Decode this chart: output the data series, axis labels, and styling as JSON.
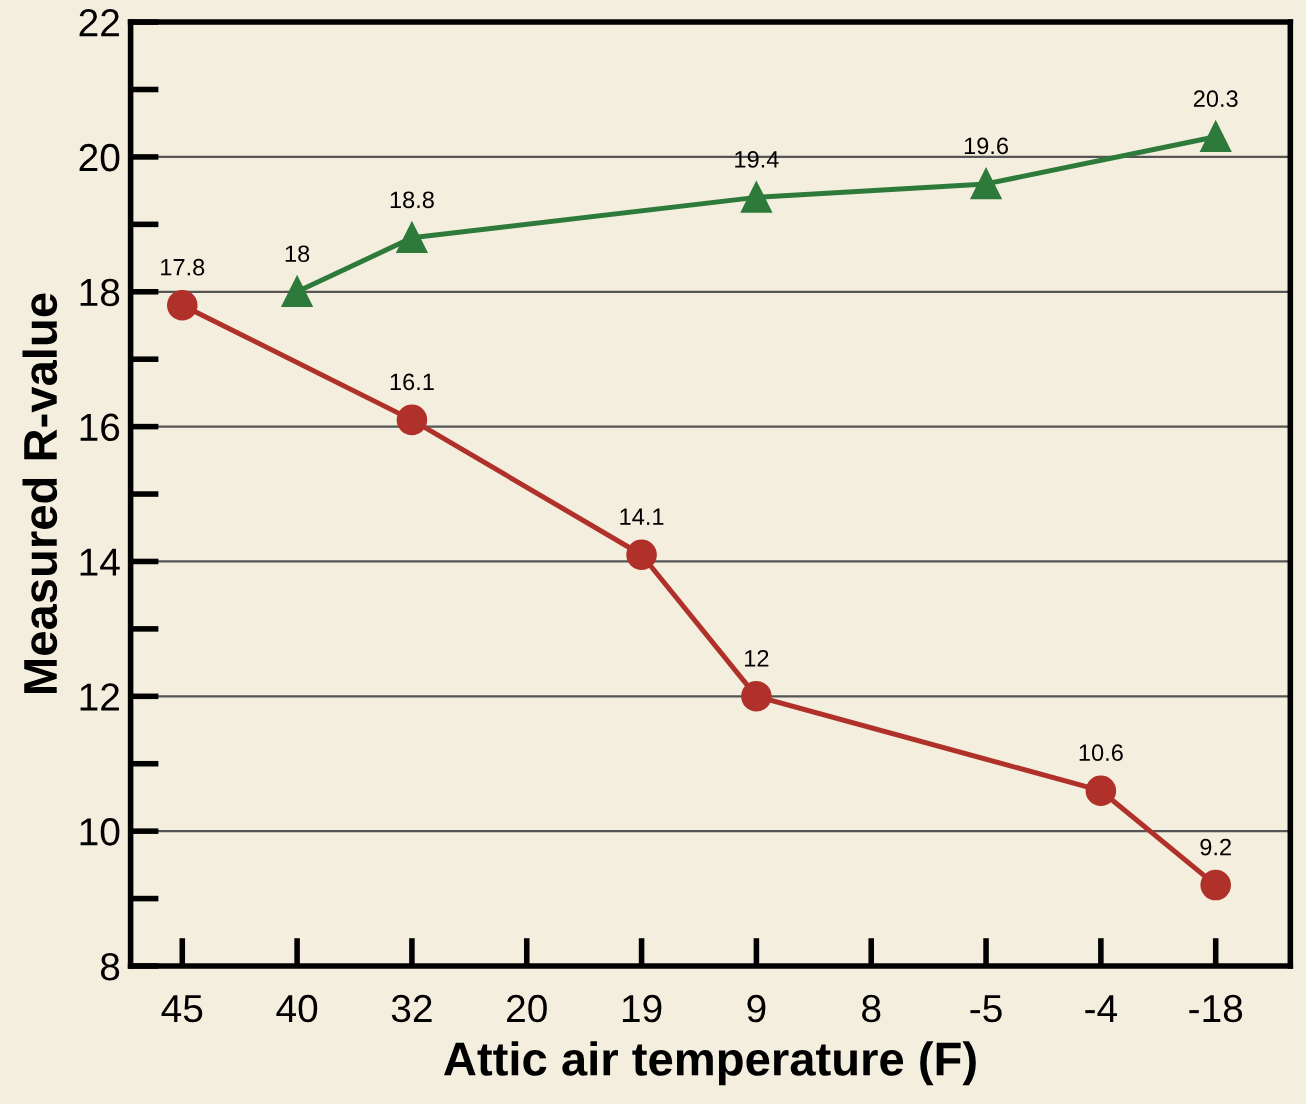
{
  "chart_data": {
    "type": "line",
    "xlabel": "Attic air temperature (F)",
    "ylabel": "Measured R-value",
    "categories": [
      "45",
      "40",
      "32",
      "20",
      "19",
      "9",
      "8",
      "-5",
      "-4",
      "-18"
    ],
    "ylim": [
      8,
      22
    ],
    "yticks": [
      8,
      {
        "value": 9,
        "label": null
      },
      10,
      {
        "value": 11,
        "label": null
      },
      12,
      {
        "value": 13,
        "label": null
      },
      14,
      {
        "value": 15,
        "label": null
      },
      16,
      {
        "value": 17,
        "label": null
      },
      18,
      {
        "value": 19,
        "label": null
      },
      20,
      {
        "value": 21,
        "label": null
      },
      22
    ],
    "grid": "y",
    "data_labels": true,
    "line_style": "solid",
    "series": [
      {
        "color": "#2e7a3a",
        "marker": "triangle",
        "x": [
          "40",
          "32",
          "9",
          "-5",
          "-18"
        ],
        "values": [
          18,
          18.8,
          19.4,
          19.6,
          20.3
        ]
      },
      {
        "color": "#b0302a",
        "marker": "circle",
        "x": [
          "45",
          "32",
          "19",
          "9",
          "-4",
          "-18"
        ],
        "values": [
          17.8,
          16.1,
          14.1,
          12,
          10.6,
          9.2
        ]
      }
    ]
  }
}
